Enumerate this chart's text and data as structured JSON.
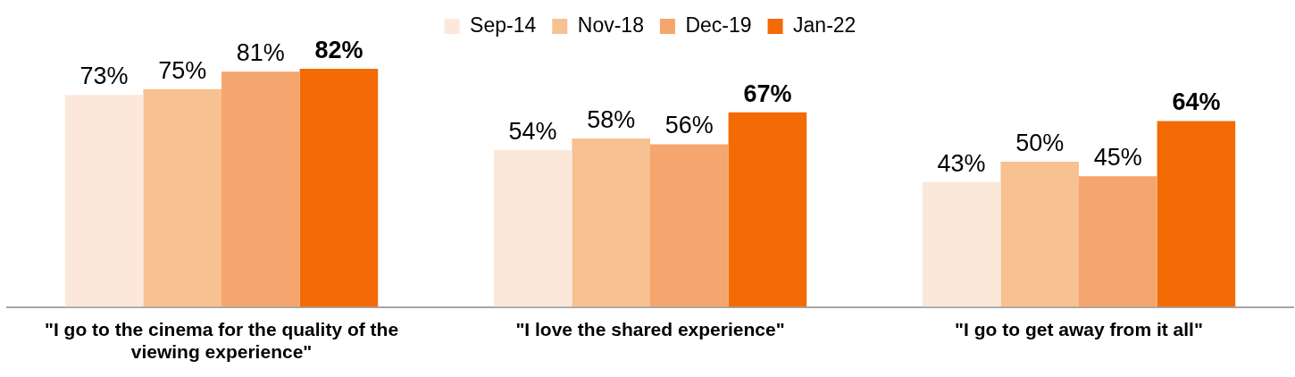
{
  "chart_data": {
    "type": "bar",
    "categories": [
      "\"I go to the cinema for the quality of the viewing experience\"",
      "\"I love the shared experience\"",
      "\"I go to get away from it all\""
    ],
    "series": [
      {
        "name": "Sep-14",
        "color": "#fce8da",
        "values": [
          73,
          54,
          43
        ],
        "value_labels": [
          "73%",
          "54%",
          "43%"
        ]
      },
      {
        "name": "Nov-18",
        "color": "#f8c191",
        "values": [
          75,
          58,
          50
        ],
        "value_labels": [
          "75%",
          "58%",
          "50%"
        ]
      },
      {
        "name": "Dec-19",
        "color": "#f5a66e",
        "values": [
          81,
          56,
          45
        ],
        "value_labels": [
          "81%",
          "56%",
          "45%"
        ]
      },
      {
        "name": "Jan-22",
        "color": "#f46a04",
        "values": [
          82,
          67,
          64
        ],
        "value_labels": [
          "82%",
          "67%",
          "64%"
        ]
      }
    ],
    "tick_labels": "x",
    "grid": false,
    "legend": "top"
  }
}
